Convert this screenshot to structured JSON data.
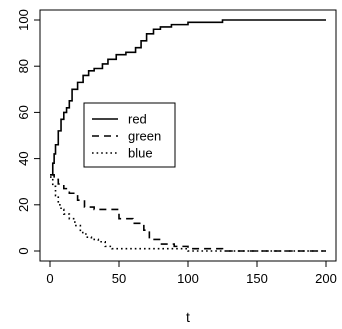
{
  "chart_data": {
    "type": "line",
    "step": true,
    "title": "",
    "xlabel": "t",
    "ylabel": "",
    "xlim": [
      0,
      200
    ],
    "ylim": [
      0,
      100
    ],
    "xticks": [
      0,
      50,
      100,
      150,
      200
    ],
    "yticks": [
      0,
      20,
      40,
      60,
      80,
      100
    ],
    "grid": false,
    "legend": {
      "position": "left-center"
    },
    "series": [
      {
        "name": "red",
        "dash": "solid",
        "x": [
          0,
          2,
          3,
          4,
          6,
          8,
          10,
          12,
          14,
          16,
          20,
          24,
          28,
          32,
          38,
          42,
          48,
          55,
          62,
          66,
          70,
          75,
          80,
          88,
          100,
          125,
          200
        ],
        "y": [
          33,
          38,
          42,
          46,
          52,
          57,
          60,
          62,
          65,
          70,
          73,
          76,
          78,
          79,
          81,
          83,
          85,
          86,
          88,
          91,
          94,
          96,
          97,
          98,
          99,
          100,
          100
        ]
      },
      {
        "name": "green",
        "dash": "dashed",
        "x": [
          0,
          3,
          6,
          10,
          14,
          20,
          25,
          32,
          40,
          50,
          60,
          68,
          72,
          80,
          90,
          100,
          125,
          200
        ],
        "y": [
          33,
          31,
          29,
          27,
          25,
          22,
          19,
          18,
          18,
          14,
          12,
          9,
          5,
          3,
          2,
          1,
          0,
          0
        ]
      },
      {
        "name": "blue",
        "dash": "dotted",
        "x": [
          0,
          2,
          4,
          6,
          8,
          10,
          14,
          18,
          22,
          26,
          30,
          35,
          40,
          45,
          80,
          100,
          120,
          200
        ],
        "y": [
          32,
          28,
          24,
          20,
          18,
          16,
          14,
          11,
          8,
          6,
          5,
          4,
          2,
          1,
          1,
          0,
          0,
          0
        ]
      }
    ]
  }
}
